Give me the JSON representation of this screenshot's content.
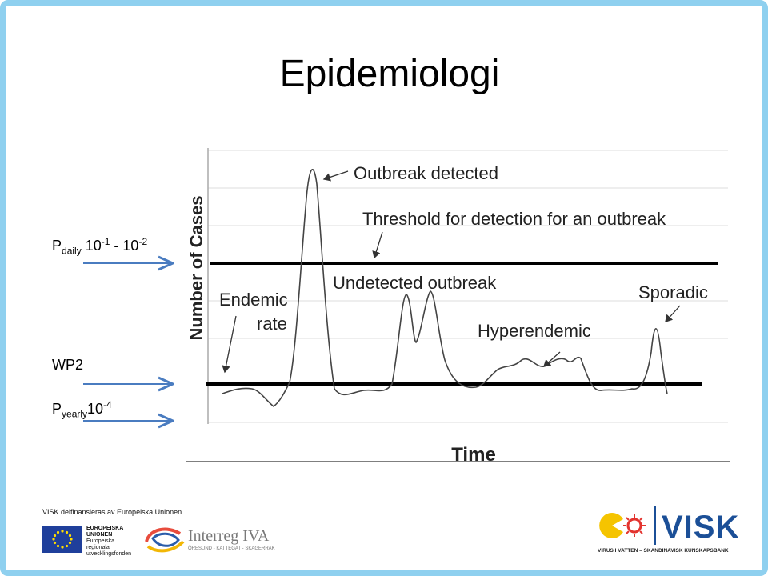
{
  "slide": {
    "title": "Epidemiologi",
    "side_labels": {
      "p_daily": {
        "p": "P",
        "sub": "daily",
        "base1": "10",
        "exp1": "-1",
        "sep": " - ",
        "base2": "10",
        "exp2": "-2"
      },
      "wp2": "WP2",
      "p_yearly": {
        "p": "P",
        "sub": "yearly",
        "base": "10",
        "exp": "-4"
      }
    }
  },
  "diagram": {
    "y_axis_label": "Number of Cases",
    "x_axis_label": "Time",
    "annotations": {
      "outbreak_detected": "Outbreak detected",
      "threshold": "Threshold for detection for an outbreak",
      "undetected_outbreak": "Undetected outbreak",
      "endemic_line1": "Endemic",
      "endemic_line2": "rate",
      "sporadic": "Sporadic",
      "hyperendemic": "Hyperendemic"
    },
    "colors": {
      "arrow": "#4a7cc0",
      "curve": "#444444",
      "threshold_line": "#000000"
    }
  },
  "footer": {
    "funding_text": "VISK delfinansieras av Europeiska Unionen",
    "eu_logo_text": [
      "EUROPEISKA",
      "UNIONEN",
      "Europeiska",
      "regionala",
      "utvecklingsfonden"
    ],
    "interreg_text": "Interreg IVA",
    "interreg_sub": "ÖRESUND - KATTEGAT - SKAGERRAK",
    "visk_name": "VISK",
    "visk_tagline": "VIRUS I VATTEN – SKANDINAVISK KUNSKAPSBANK",
    "visk_color": "#1b4f97"
  }
}
